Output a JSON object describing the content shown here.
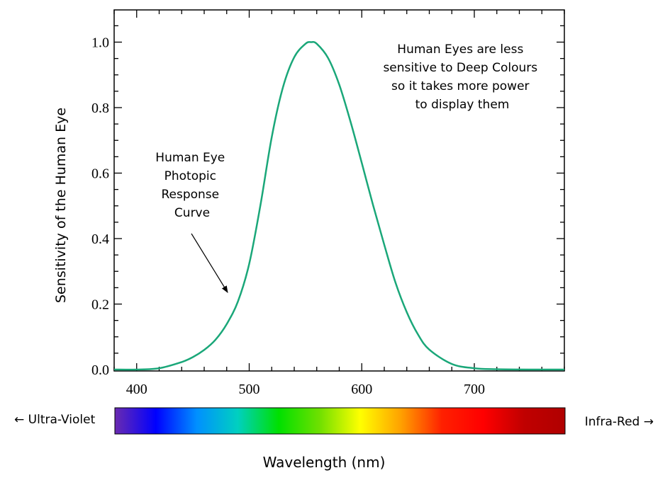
{
  "chart_data": {
    "type": "line",
    "xlabel": "Wavelength (nm)",
    "ylabel": "Sensitivity of the Human Eye",
    "xlim": [
      380,
      780
    ],
    "ylim": [
      0,
      1.05
    ],
    "x_ticks": [
      400,
      500,
      600,
      700
    ],
    "y_ticks": [
      "0.0",
      "0.2",
      "0.4",
      "0.6",
      "0.8",
      "1.0"
    ],
    "line_color": "#1aa779",
    "series": [
      {
        "x": [
          380,
          400,
          420,
          440,
          450,
          460,
          470,
          480,
          490,
          500,
          510,
          520,
          530,
          540,
          550,
          555,
          560,
          570,
          580,
          590,
          600,
          610,
          620,
          630,
          640,
          650,
          660,
          680,
          700,
          720,
          750,
          780
        ],
        "values": [
          0.0,
          0.0,
          0.004,
          0.023,
          0.038,
          0.06,
          0.091,
          0.139,
          0.208,
          0.323,
          0.503,
          0.71,
          0.862,
          0.954,
          0.995,
          1.0,
          0.995,
          0.952,
          0.87,
          0.757,
          0.631,
          0.503,
          0.381,
          0.265,
          0.175,
          0.107,
          0.061,
          0.017,
          0.004,
          0.001,
          0.0,
          0.0
        ]
      }
    ],
    "annotations": {
      "curve_label": [
        "Human Eye",
        "Photopic",
        "Response",
        "Curve"
      ],
      "note": [
        "Human Eyes are less",
        "sensitive to Deep Colours",
        "so it takes more power",
        "to display them"
      ]
    },
    "spectrum_left_label": "← Ultra-Violet",
    "spectrum_right_label": "Infra-Red →",
    "spectrum_colors": [
      "#6a2bb0",
      "#0000ff",
      "#0090ff",
      "#00d0c0",
      "#00e000",
      "#70e000",
      "#ffff00",
      "#ffa000",
      "#ff2000",
      "#ff0000",
      "#c00000",
      "#b00000"
    ]
  }
}
